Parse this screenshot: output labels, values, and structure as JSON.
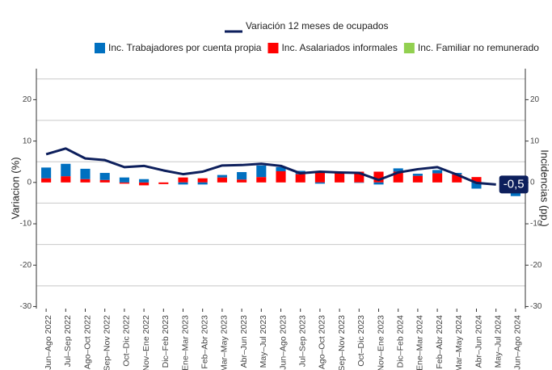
{
  "chart_data": {
    "type": "bar-line",
    "categories": [
      "Jun–Ago 2022",
      "Jul–Sep 2022",
      "Ago–Oct 2022",
      "Sep–Nov 2022",
      "Oct–Dic 2022",
      "Nov–Ene 2022",
      "Dic–Feb 2023",
      "Ene–Mar 2023",
      "Feb–Abr 2023",
      "Mar–May 2023",
      "Abr–Jun 2023",
      "May–Jul 2023",
      "Jun–Ago 2023",
      "Jul–Sep 2023",
      "Ago–Oct 2023",
      "Sep–Nov 2023",
      "Oct–Dic 2023",
      "Nov–Ene 2023",
      "Dic–Feb 2024",
      "Ene–Mar 2024",
      "Feb–Abr 2024",
      "Mar–May 2024",
      "Abr–Jun 2024",
      "May–Jul 2024",
      "Jun–Ago 2024"
    ],
    "line": {
      "name": "Variación 12 meses de ocupados",
      "color": "#0d1f5c",
      "values": [
        6.8,
        8.2,
        5.8,
        5.4,
        3.7,
        4.0,
        2.9,
        2.0,
        2.6,
        4.1,
        4.2,
        4.5,
        4.0,
        2.2,
        2.6,
        2.4,
        2.3,
        0.6,
        2.4,
        3.2,
        3.7,
        1.9,
        -0.1,
        -0.5,
        null
      ],
      "value_labels": [
        null,
        null,
        null,
        null,
        null,
        null,
        null,
        null,
        null,
        null,
        null,
        null,
        null,
        null,
        null,
        null,
        null,
        null,
        null,
        null,
        null,
        null,
        null,
        "-0,5",
        null
      ]
    },
    "series": [
      {
        "name": "Inc. Asalariados informales",
        "color": "#ff0000",
        "axis": "y2",
        "values": [
          1.0,
          1.5,
          0.8,
          0.6,
          -0.3,
          -0.7,
          -0.4,
          1.2,
          1.0,
          1.2,
          0.7,
          1.3,
          2.7,
          2.0,
          2.4,
          2.3,
          2.6,
          2.6,
          2.6,
          1.6,
          2.2,
          1.9,
          1.3,
          0,
          0
        ]
      },
      {
        "name": "Inc. Trabajadores por cuenta propia",
        "color": "#0070c0",
        "axis": "y2",
        "values": [
          2.6,
          3.0,
          2.5,
          1.7,
          1.2,
          0.8,
          0,
          -0.5,
          -0.5,
          0.6,
          1.8,
          2.8,
          1.0,
          0.8,
          -0.3,
          0.2,
          -0.1,
          -0.5,
          0.8,
          0.5,
          0.8,
          0.4,
          -1.5,
          0,
          -3.3
        ]
      },
      {
        "name": "Inc. Familiar no remunerado",
        "color": "#92d050",
        "axis": "y2",
        "values": [
          0,
          0,
          0,
          0,
          0,
          0,
          0,
          0,
          0,
          0,
          0,
          0,
          0,
          0,
          0,
          0,
          0,
          0,
          0,
          0,
          0,
          0,
          0,
          0,
          0
        ]
      }
    ],
    "legend_order": [
      1,
      0,
      2
    ],
    "y_label": "Variacion (%)",
    "y2_label": "Incidencias (pp.)",
    "ylim": [
      -30.5,
      27.5
    ],
    "yticks": [
      -30,
      -20,
      -10,
      0,
      10,
      20
    ],
    "y2lim": [
      -30.5,
      27.5
    ],
    "y2ticks": [
      -30,
      -20,
      -10,
      0,
      10,
      20
    ],
    "grid_values": [
      25,
      15,
      5,
      -5,
      -15,
      -25
    ]
  }
}
